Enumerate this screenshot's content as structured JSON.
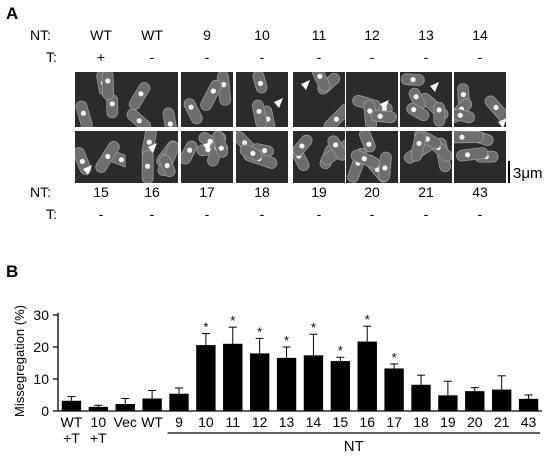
{
  "panel_a": {
    "letter": "A",
    "row1": {
      "nt_label": "NT:",
      "t_label": "T:",
      "nt": [
        "WT",
        "WT",
        "9",
        "10",
        "11",
        "12",
        "13",
        "14"
      ],
      "t": [
        "+",
        "-",
        "-",
        "-",
        "-",
        "-",
        "-",
        "-"
      ]
    },
    "row2": {
      "nt_label": "NT:",
      "t_label": "T:",
      "nt": [
        "15",
        "16",
        "17",
        "18",
        "19",
        "20",
        "21",
        "43"
      ],
      "t": [
        "-",
        "-",
        "-",
        "-",
        "-",
        "-",
        "-",
        "-"
      ]
    },
    "scale_bar_label": "3μm"
  },
  "panel_b": {
    "letter": "B",
    "xgroup_label": "NT"
  },
  "chart_data": {
    "type": "bar",
    "ylabel": "Missegregation (%)",
    "ylim": [
      0,
      30
    ],
    "yticks": [
      0,
      10,
      20,
      30
    ],
    "categories": [
      "WT +T",
      "10 +T",
      "Vec",
      "WT",
      "9",
      "10",
      "11",
      "12",
      "13",
      "14",
      "15",
      "16",
      "17",
      "18",
      "19",
      "20",
      "21",
      "43"
    ],
    "tick_labels_top": [
      "WT",
      "10",
      "Vec",
      "WT",
      "9",
      "10",
      "11",
      "12",
      "13",
      "14",
      "15",
      "16",
      "17",
      "18",
      "19",
      "20",
      "21",
      "43"
    ],
    "tick_labels_bottom": [
      "+T",
      "+T",
      "",
      "",
      "",
      "",
      "",
      "",
      "",
      "",
      "",
      "",
      "",
      "",
      "",
      "",
      "",
      ""
    ],
    "values": [
      3.2,
      1.3,
      2.2,
      3.9,
      5.4,
      20.6,
      21.0,
      18.0,
      16.6,
      17.4,
      15.6,
      21.7,
      13.3,
      8.2,
      4.9,
      6.2,
      6.7,
      3.8
    ],
    "errors": [
      1.3,
      0.5,
      1.7,
      2.5,
      1.8,
      3.6,
      5.2,
      4.7,
      3.4,
      6.6,
      1.2,
      4.8,
      1.4,
      3.0,
      4.4,
      1.1,
      4.3,
      1.2
    ],
    "significant": [
      false,
      false,
      false,
      false,
      false,
      true,
      true,
      true,
      true,
      true,
      true,
      true,
      true,
      false,
      false,
      false,
      false,
      false
    ],
    "significance_marker": "*",
    "bar_color": "#000000"
  }
}
